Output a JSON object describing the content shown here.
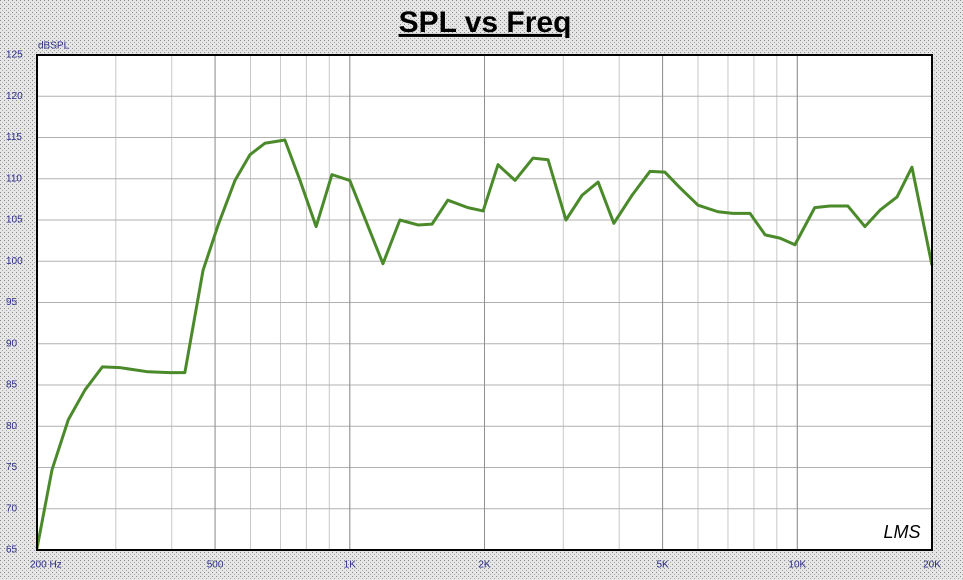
{
  "chart_data": {
    "type": "line",
    "title": "SPL vs Freq",
    "y_label": "dBSPL",
    "logo": "LMS",
    "x_log": true,
    "grid": true,
    "x": [
      200,
      216,
      235,
      256,
      280,
      307,
      354,
      396,
      428,
      470,
      508,
      554,
      598,
      646,
      716,
      774,
      841,
      912,
      1000,
      1186,
      1294,
      1420,
      1527,
      1656,
      1836,
      1986,
      2144,
      2340,
      2566,
      2774,
      3041,
      3304,
      3589,
      3891,
      4273,
      4687,
      5060,
      5470,
      6000,
      6650,
      7180,
      7840,
      8475,
      9146,
      9880,
      10940,
      11830,
      12970,
      14160,
      15310,
      16710,
      18040,
      20000
    ],
    "series": [
      {
        "name": "SPL",
        "color": "#4b8a2b",
        "values": [
          65.2,
          74.7,
          80.8,
          84.4,
          87.2,
          87.1,
          86.6,
          86.5,
          86.5,
          98.9,
          104.4,
          109.8,
          112.9,
          114.3,
          114.7,
          109.8,
          104.2,
          110.5,
          109.8,
          99.7,
          105,
          104.4,
          104.5,
          107.4,
          106.5,
          106.1,
          111.7,
          109.8,
          112.5,
          112.3,
          105,
          108,
          109.6,
          104.6,
          108,
          110.9,
          110.8,
          108.9,
          106.8,
          106,
          105.8,
          105.8,
          103.2,
          102.8,
          102,
          106.5,
          106.7,
          106.7,
          104.2,
          106.2,
          107.8,
          111.4,
          99.5
        ]
      }
    ],
    "xlim": [
      200,
      20000
    ],
    "xticks": [
      {
        "value": 200,
        "label": "200 Hz"
      },
      500,
      {
        "value": 1000,
        "label": "1K"
      },
      {
        "value": 2000,
        "label": "2K"
      },
      {
        "value": 5000,
        "label": "5K"
      },
      {
        "value": 10000,
        "label": "10K"
      },
      {
        "value": 20000,
        "label": "20K"
      }
    ],
    "ylim": [
      65,
      125
    ],
    "yticks": [
      65,
      70,
      75,
      80,
      85,
      90,
      95,
      100,
      105,
      110,
      115,
      120,
      125
    ]
  }
}
